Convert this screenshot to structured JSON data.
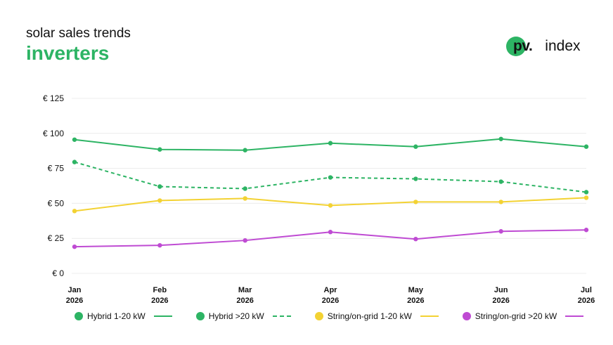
{
  "header": {
    "subtitle": "solar sales trends",
    "title": "inverters"
  },
  "logo": {
    "pv": "pv.",
    "index": "index",
    "accent_color": "#2db464"
  },
  "chart_data": {
    "type": "line",
    "categories": [
      [
        "Jan",
        "2026"
      ],
      [
        "Feb",
        "2026"
      ],
      [
        "Mar",
        "2026"
      ],
      [
        "Apr",
        "2026"
      ],
      [
        "May",
        "2026"
      ],
      [
        "Jun",
        "2026"
      ],
      [
        "Jul",
        "2026"
      ]
    ],
    "y_ticks": [
      "€ 0",
      "€ 25",
      "€ 50",
      "€ 75",
      "€ 100",
      "€ 125"
    ],
    "ylim": [
      0,
      125
    ],
    "grid": true,
    "legend_position": "bottom",
    "series": [
      {
        "name": "Hybrid 1-20 kW",
        "color": "#2db464",
        "dashed": false,
        "values": [
          95.5,
          88.5,
          88,
          93,
          90.5,
          96,
          90.5
        ]
      },
      {
        "name": "Hybrid >20 kW",
        "color": "#2db464",
        "dashed": true,
        "values": [
          79.5,
          62,
          60.5,
          68.5,
          67.5,
          65.5,
          58
        ]
      },
      {
        "name": "String/on-grid 1-20 kW",
        "color": "#f3d233",
        "dashed": false,
        "values": [
          44.5,
          52,
          53.5,
          48.5,
          51,
          51,
          54
        ]
      },
      {
        "name": "String/on-grid >20 kW",
        "color": "#bf4bd3",
        "dashed": false,
        "values": [
          19,
          20,
          23.5,
          29.5,
          24.5,
          30,
          31
        ]
      }
    ]
  }
}
